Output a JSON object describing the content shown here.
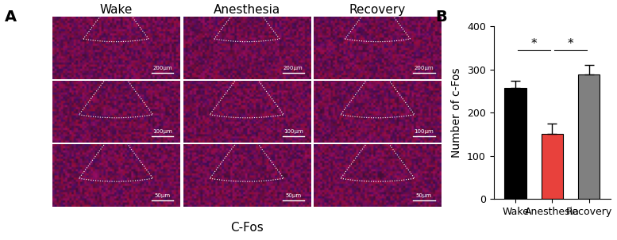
{
  "image_panel": {
    "panel_label": "A",
    "columns": [
      "Wake",
      "Anesthesia",
      "Recovery"
    ],
    "scale_bars": [
      "200μm",
      "100μm",
      "50μm"
    ],
    "caption": "C-Fos"
  },
  "chart_data": {
    "type": "bar",
    "panel_label": "B",
    "categories": [
      "Wake",
      "Anesthesia",
      "Recovery"
    ],
    "values": [
      257,
      152,
      288
    ],
    "errors": [
      18,
      23,
      22
    ],
    "colors": [
      "#000000",
      "#e8413c",
      "#808080"
    ],
    "y_label": "Number of c-Fos",
    "ylim": [
      0,
      400
    ],
    "yticks": [
      0,
      100,
      200,
      300,
      400
    ],
    "significance": [
      {
        "from": "Wake",
        "to": "Anesthesia",
        "label": "*"
      },
      {
        "from": "Anesthesia",
        "to": "Recovery",
        "label": "*"
      }
    ]
  }
}
